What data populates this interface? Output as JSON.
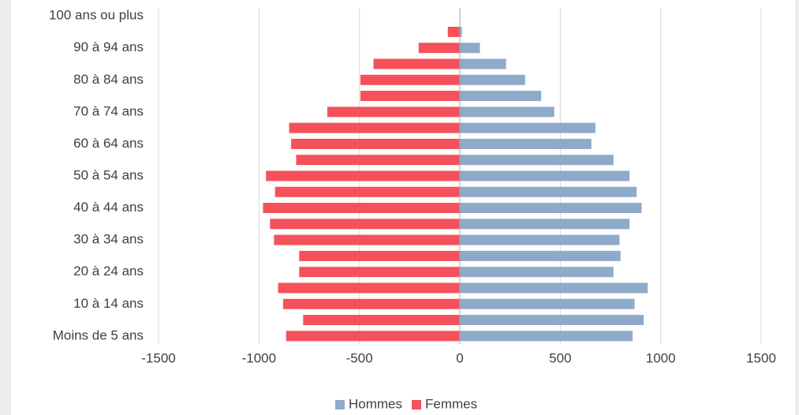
{
  "chart_data": {
    "type": "bar",
    "orientation": "horizontal",
    "categories": [
      "Moins de 5 ans",
      null,
      "10 à 14 ans",
      null,
      "20 à 24 ans",
      null,
      "30 à 34 ans",
      null,
      "40 à 44 ans",
      null,
      "50 à 54 ans",
      null,
      "60 à 64 ans",
      null,
      "70 à 74 ans",
      null,
      "80 à 84 ans",
      null,
      "90 à 94 ans",
      null,
      "100 ans ou plus"
    ],
    "series": [
      {
        "name": "Hommes",
        "color": "#8eaacb",
        "values": [
          860,
          915,
          870,
          935,
          765,
          800,
          795,
          845,
          905,
          880,
          845,
          765,
          655,
          675,
          470,
          405,
          325,
          230,
          100,
          10,
          0
        ]
      },
      {
        "name": "Femmes",
        "color": "#f4515a",
        "values": [
          -865,
          -780,
          -880,
          -905,
          -800,
          -800,
          -925,
          -945,
          -980,
          -920,
          -965,
          -815,
          -840,
          -850,
          -660,
          -495,
          -495,
          -430,
          -205,
          -60,
          0
        ]
      }
    ],
    "xlim": [
      -1500,
      1500
    ],
    "xticks": [
      -1500,
      -1000,
      -500,
      0,
      500,
      1000,
      1500
    ],
    "grid": true,
    "legend": "bottom"
  }
}
